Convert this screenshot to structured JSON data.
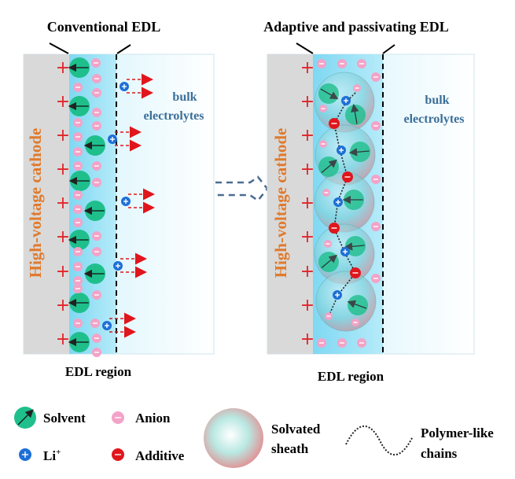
{
  "left_panel": {
    "title": "Conventional EDL",
    "cathode_label": "High-voltage cathode",
    "bulk_label_line1": "bulk",
    "bulk_label_line2": "electrolytes",
    "region_label": "EDL region"
  },
  "right_panel": {
    "title": "Adaptive and passivating EDL",
    "cathode_label": "High-voltage cathode",
    "bulk_label_line1": "bulk",
    "bulk_label_line2": "electrolytes",
    "region_label": "EDL region"
  },
  "legend": {
    "solvent": "Solvent",
    "anion": "Anion",
    "li": "Li",
    "li_sup": "+",
    "additive": "Additive",
    "sheath_line1": "Solvated",
    "sheath_line2": "sheath",
    "chains_line1": "Polymer-like",
    "chains_line2": "chains"
  },
  "colors": {
    "solvent": "#1fbf8c",
    "anion": "#f3a3c8",
    "li": "#1e6fd6",
    "additive": "#e0161c",
    "cathode": "#d9d9d9",
    "edl": "#8fdcf3",
    "cathode_text": "#e07a2c",
    "bulk_text": "#3b6f98"
  }
}
